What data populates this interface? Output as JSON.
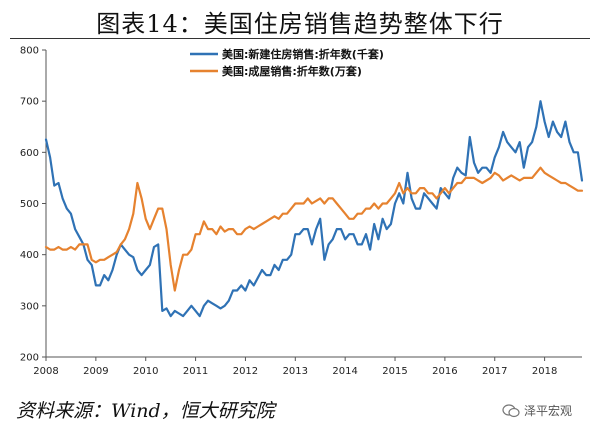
{
  "title": "图表14：美国住房销售趋势整体下行",
  "source": "资料来源：Wind，恒大研究院",
  "watermark": "泽平宏观",
  "chart_data": {
    "type": "line",
    "ylim": [
      200,
      800
    ],
    "yticks": [
      200,
      300,
      400,
      500,
      600,
      700,
      800
    ],
    "xlim": [
      2008,
      2018.75
    ],
    "xticks": [
      2008,
      2009,
      2010,
      2011,
      2012,
      2013,
      2014,
      2015,
      2016,
      2017,
      2018
    ],
    "xtick_labels": [
      "2008",
      "2009",
      "2010",
      "2011",
      "2012",
      "2013",
      "2014",
      "2015",
      "2016",
      "2017",
      "2018"
    ],
    "legend_position": "top-center",
    "series": [
      {
        "name": "美国:新建住房销售:折年数(千套)",
        "color": "#2f72b5",
        "x": [
          2008.0,
          2008.083,
          2008.167,
          2008.25,
          2008.333,
          2008.417,
          2008.5,
          2008.583,
          2008.667,
          2008.75,
          2008.833,
          2008.917,
          2009.0,
          2009.083,
          2009.167,
          2009.25,
          2009.333,
          2009.417,
          2009.5,
          2009.583,
          2009.667,
          2009.75,
          2009.833,
          2009.917,
          2010.0,
          2010.083,
          2010.167,
          2010.25,
          2010.333,
          2010.417,
          2010.5,
          2010.583,
          2010.667,
          2010.75,
          2010.833,
          2010.917,
          2011.0,
          2011.083,
          2011.167,
          2011.25,
          2011.333,
          2011.417,
          2011.5,
          2011.583,
          2011.667,
          2011.75,
          2011.833,
          2011.917,
          2012.0,
          2012.083,
          2012.167,
          2012.25,
          2012.333,
          2012.417,
          2012.5,
          2012.583,
          2012.667,
          2012.75,
          2012.833,
          2012.917,
          2013.0,
          2013.083,
          2013.167,
          2013.25,
          2013.333,
          2013.417,
          2013.5,
          2013.583,
          2013.667,
          2013.75,
          2013.833,
          2013.917,
          2014.0,
          2014.083,
          2014.167,
          2014.25,
          2014.333,
          2014.417,
          2014.5,
          2014.583,
          2014.667,
          2014.75,
          2014.833,
          2014.917,
          2015.0,
          2015.083,
          2015.167,
          2015.25,
          2015.333,
          2015.417,
          2015.5,
          2015.583,
          2015.667,
          2015.75,
          2015.833,
          2015.917,
          2016.0,
          2016.083,
          2016.167,
          2016.25,
          2016.333,
          2016.417,
          2016.5,
          2016.583,
          2016.667,
          2016.75,
          2016.833,
          2016.917,
          2017.0,
          2017.083,
          2017.167,
          2017.25,
          2017.333,
          2017.417,
          2017.5,
          2017.583,
          2017.667,
          2017.75,
          2017.833,
          2017.917,
          2018.0,
          2018.083,
          2018.167,
          2018.25,
          2018.333,
          2018.417,
          2018.5,
          2018.583,
          2018.667,
          2018.75
        ],
        "values": [
          625,
          590,
          535,
          540,
          510,
          490,
          480,
          450,
          435,
          420,
          390,
          380,
          340,
          340,
          360,
          350,
          370,
          400,
          420,
          410,
          400,
          395,
          370,
          360,
          370,
          380,
          415,
          420,
          290,
          295,
          280,
          290,
          285,
          280,
          290,
          300,
          290,
          280,
          300,
          310,
          305,
          300,
          295,
          300,
          310,
          330,
          330,
          340,
          330,
          350,
          340,
          355,
          370,
          360,
          360,
          380,
          370,
          390,
          390,
          400,
          440,
          440,
          450,
          450,
          420,
          450,
          470,
          390,
          420,
          430,
          450,
          450,
          430,
          440,
          440,
          420,
          420,
          440,
          410,
          460,
          430,
          470,
          450,
          460,
          500,
          520,
          500,
          560,
          510,
          490,
          490,
          520,
          510,
          500,
          490,
          530,
          520,
          510,
          550,
          570,
          560,
          555,
          630,
          580,
          560,
          570,
          570,
          560,
          590,
          610,
          640,
          620,
          610,
          600,
          620,
          570,
          610,
          620,
          650,
          700,
          660,
          630,
          660,
          640,
          630,
          660,
          620,
          600,
          600,
          545
        ]
      },
      {
        "name": "美国:成屋销售:折年数(万套)",
        "color": "#e6822f",
        "x": [
          2008.0,
          2008.083,
          2008.167,
          2008.25,
          2008.333,
          2008.417,
          2008.5,
          2008.583,
          2008.667,
          2008.75,
          2008.833,
          2008.917,
          2009.0,
          2009.083,
          2009.167,
          2009.25,
          2009.333,
          2009.417,
          2009.5,
          2009.583,
          2009.667,
          2009.75,
          2009.833,
          2009.917,
          2010.0,
          2010.083,
          2010.167,
          2010.25,
          2010.333,
          2010.417,
          2010.5,
          2010.583,
          2010.667,
          2010.75,
          2010.833,
          2010.917,
          2011.0,
          2011.083,
          2011.167,
          2011.25,
          2011.333,
          2011.417,
          2011.5,
          2011.583,
          2011.667,
          2011.75,
          2011.833,
          2011.917,
          2012.0,
          2012.083,
          2012.167,
          2012.25,
          2012.333,
          2012.417,
          2012.5,
          2012.583,
          2012.667,
          2012.75,
          2012.833,
          2012.917,
          2013.0,
          2013.083,
          2013.167,
          2013.25,
          2013.333,
          2013.417,
          2013.5,
          2013.583,
          2013.667,
          2013.75,
          2013.833,
          2013.917,
          2014.0,
          2014.083,
          2014.167,
          2014.25,
          2014.333,
          2014.417,
          2014.5,
          2014.583,
          2014.667,
          2014.75,
          2014.833,
          2014.917,
          2015.0,
          2015.083,
          2015.167,
          2015.25,
          2015.333,
          2015.417,
          2015.5,
          2015.583,
          2015.667,
          2015.75,
          2015.833,
          2015.917,
          2016.0,
          2016.083,
          2016.167,
          2016.25,
          2016.333,
          2016.417,
          2016.5,
          2016.583,
          2016.667,
          2016.75,
          2016.833,
          2016.917,
          2017.0,
          2017.083,
          2017.167,
          2017.25,
          2017.333,
          2017.417,
          2017.5,
          2017.583,
          2017.667,
          2017.75,
          2017.833,
          2017.917,
          2018.0,
          2018.083,
          2018.167,
          2018.25,
          2018.333,
          2018.417,
          2018.5,
          2018.583,
          2018.667,
          2018.75
        ],
        "values": [
          415,
          410,
          410,
          415,
          410,
          410,
          415,
          410,
          420,
          420,
          420,
          390,
          385,
          390,
          390,
          395,
          400,
          405,
          420,
          430,
          450,
          480,
          540,
          510,
          470,
          450,
          470,
          490,
          490,
          450,
          380,
          330,
          370,
          400,
          400,
          410,
          440,
          440,
          465,
          450,
          450,
          440,
          455,
          445,
          450,
          450,
          440,
          440,
          450,
          455,
          450,
          455,
          460,
          465,
          470,
          475,
          470,
          480,
          480,
          490,
          500,
          500,
          500,
          510,
          500,
          505,
          510,
          500,
          510,
          510,
          500,
          490,
          480,
          470,
          470,
          480,
          480,
          490,
          490,
          500,
          490,
          500,
          500,
          510,
          520,
          540,
          520,
          530,
          520,
          520,
          530,
          530,
          520,
          520,
          510,
          520,
          530,
          520,
          530,
          540,
          540,
          550,
          550,
          550,
          545,
          540,
          545,
          550,
          560,
          555,
          545,
          550,
          555,
          550,
          545,
          550,
          550,
          550,
          560,
          570,
          560,
          555,
          550,
          545,
          540,
          540,
          535,
          530,
          525,
          525
        ]
      }
    ]
  }
}
